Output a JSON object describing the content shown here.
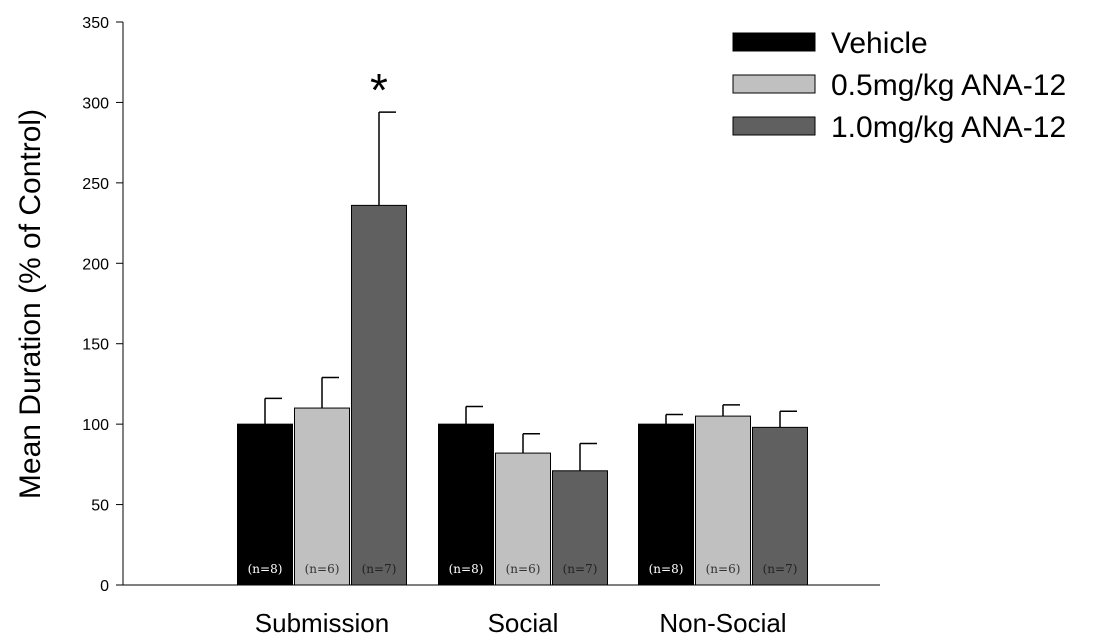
{
  "chart_data": {
    "type": "bar",
    "title": "",
    "xlabel": "",
    "ylabel": "Mean Duration (% of Control)",
    "ylim": [
      0,
      350
    ],
    "yticks": [
      0,
      50,
      100,
      150,
      200,
      250,
      300,
      350
    ],
    "grid": false,
    "legend_position": "top-right",
    "categories": [
      "Submission",
      "Social",
      "Non-Social"
    ],
    "series": [
      {
        "name": "Vehicle",
        "color": "#000000",
        "label_color": "#ffffff",
        "values": [
          100,
          100,
          100
        ],
        "errors": [
          16,
          11,
          6
        ],
        "n_labels": [
          "(n=8)",
          "(n=8)",
          "(n=8)"
        ]
      },
      {
        "name": "0.5mg/kg ANA-12",
        "color": "#c0c0c0",
        "label_color": "#333333",
        "values": [
          110,
          82,
          105
        ],
        "errors": [
          19,
          12,
          7
        ],
        "n_labels": [
          "(n=6)",
          "(n=6)",
          "(n=6)"
        ]
      },
      {
        "name": "1.0mg/kg ANA-12",
        "color": "#606060",
        "label_color": "#222222",
        "values": [
          236,
          71,
          98
        ],
        "errors": [
          58,
          17,
          10
        ],
        "n_labels": [
          "(n=7)",
          "(n=7)",
          "(n=7)"
        ]
      }
    ],
    "annotations": [
      {
        "text": "*",
        "category": "Submission",
        "series": "1.0mg/kg ANA-12"
      }
    ]
  }
}
